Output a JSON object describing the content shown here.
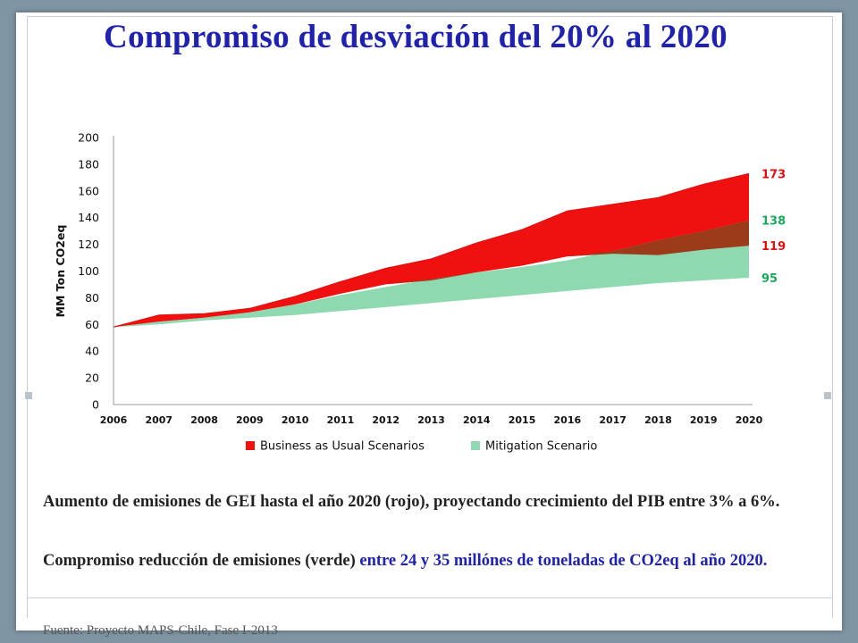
{
  "title": "Compromiso de desviación del 20% al 2020",
  "paragraph1": "Aumento de  emisiones  de GEI hasta el año 2020 (rojo), proyectando  crecimiento del PIB entre 3% a 6%.",
  "paragraph2_black": "Compromiso reducción de emisiones (verde) ",
  "paragraph2_blue": "entre 24 y 35 millónes de toneladas de CO2eq al año 2020.",
  "source": "Fuente: Proyecto MAPS-Chile, Fase I-2013",
  "chart_data": {
    "type": "area",
    "ylabel": "MM Ton CO2eq",
    "xlabel": "",
    "ylim": [
      0,
      200
    ],
    "yticks": [
      0,
      20,
      40,
      60,
      80,
      100,
      120,
      140,
      160,
      180,
      200
    ],
    "x": [
      2006,
      2007,
      2008,
      2009,
      2010,
      2011,
      2012,
      2013,
      2014,
      2015,
      2016,
      2017,
      2018,
      2019,
      2020
    ],
    "legend_position": "bottom",
    "grid": false,
    "series": [
      {
        "name": "Business as Usual Scenarios",
        "color": "#f01010",
        "upper": [
          58,
          67,
          68,
          72,
          81,
          92,
          102,
          109,
          121,
          131,
          145,
          150,
          155,
          165,
          173
        ],
        "lower": [
          58,
          62,
          65,
          69,
          75,
          83,
          90,
          93,
          99,
          104,
          111,
          113,
          112,
          116,
          119
        ]
      },
      {
        "name": "Mitigation Scenario",
        "color": "#8fd9b0",
        "upper": [
          58,
          62,
          65,
          69,
          75,
          82,
          88,
          94,
          99,
          103,
          108,
          115,
          123,
          130,
          138
        ],
        "lower": [
          58,
          60,
          63,
          65,
          67,
          70,
          73,
          76,
          79,
          82,
          85,
          88,
          91,
          93,
          95
        ]
      }
    ],
    "overlap_color": "#9b3b1a",
    "end_labels": [
      {
        "text": "173",
        "value": 173,
        "color": "#e01010"
      },
      {
        "text": "138",
        "value": 138,
        "color": "#1aa85a"
      },
      {
        "text": "119",
        "value": 119,
        "color": "#e01010"
      },
      {
        "text": "95",
        "value": 95,
        "color": "#1aa85a"
      }
    ]
  }
}
